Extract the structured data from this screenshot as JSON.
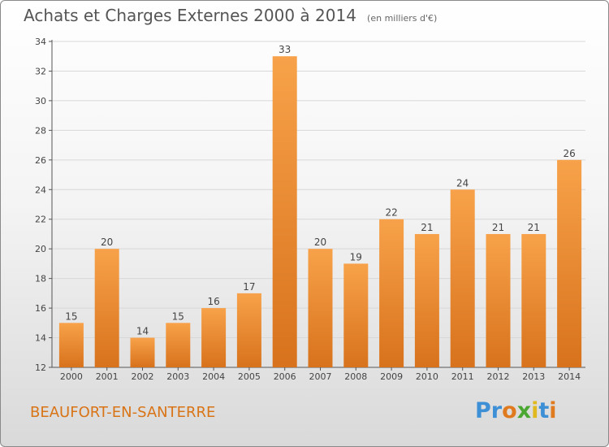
{
  "header": {
    "title": "Achats et Charges Externes 2000 à 2014",
    "subtitle": "(en milliers d'€)"
  },
  "footer": {
    "commune": "BEAUFORT-EN-SANTERRE",
    "logo_text": "Proxiti",
    "logo_letters": [
      {
        "ch": "P",
        "color": "#3d8fd6"
      },
      {
        "ch": "r",
        "color": "#3d8fd6"
      },
      {
        "ch": "o",
        "color": "#e07a1f"
      },
      {
        "ch": "x",
        "color": "#4aa832"
      },
      {
        "ch": "i",
        "color": "#e0b91f"
      },
      {
        "ch": "t",
        "color": "#3d8fd6"
      },
      {
        "ch": "i",
        "color": "#e07a1f"
      }
    ]
  },
  "chart_data": {
    "type": "bar",
    "title": "Achats et Charges Externes 2000 à 2014",
    "subtitle": "(en milliers d'€)",
    "categories": [
      "2000",
      "2001",
      "2002",
      "2003",
      "2004",
      "2005",
      "2006",
      "2007",
      "2008",
      "2009",
      "2010",
      "2011",
      "2012",
      "2013",
      "2014"
    ],
    "values": [
      15,
      20,
      14,
      15,
      16,
      17,
      33,
      20,
      19,
      22,
      21,
      24,
      21,
      21,
      26
    ],
    "ylim": [
      12,
      34
    ],
    "yticks": [
      12,
      14,
      16,
      18,
      20,
      22,
      24,
      26,
      28,
      30,
      32,
      34
    ],
    "grid": true,
    "bar_color": "#f0943a",
    "bar_color_dark": "#d4701a",
    "grid_color": "#d8d8d8"
  }
}
